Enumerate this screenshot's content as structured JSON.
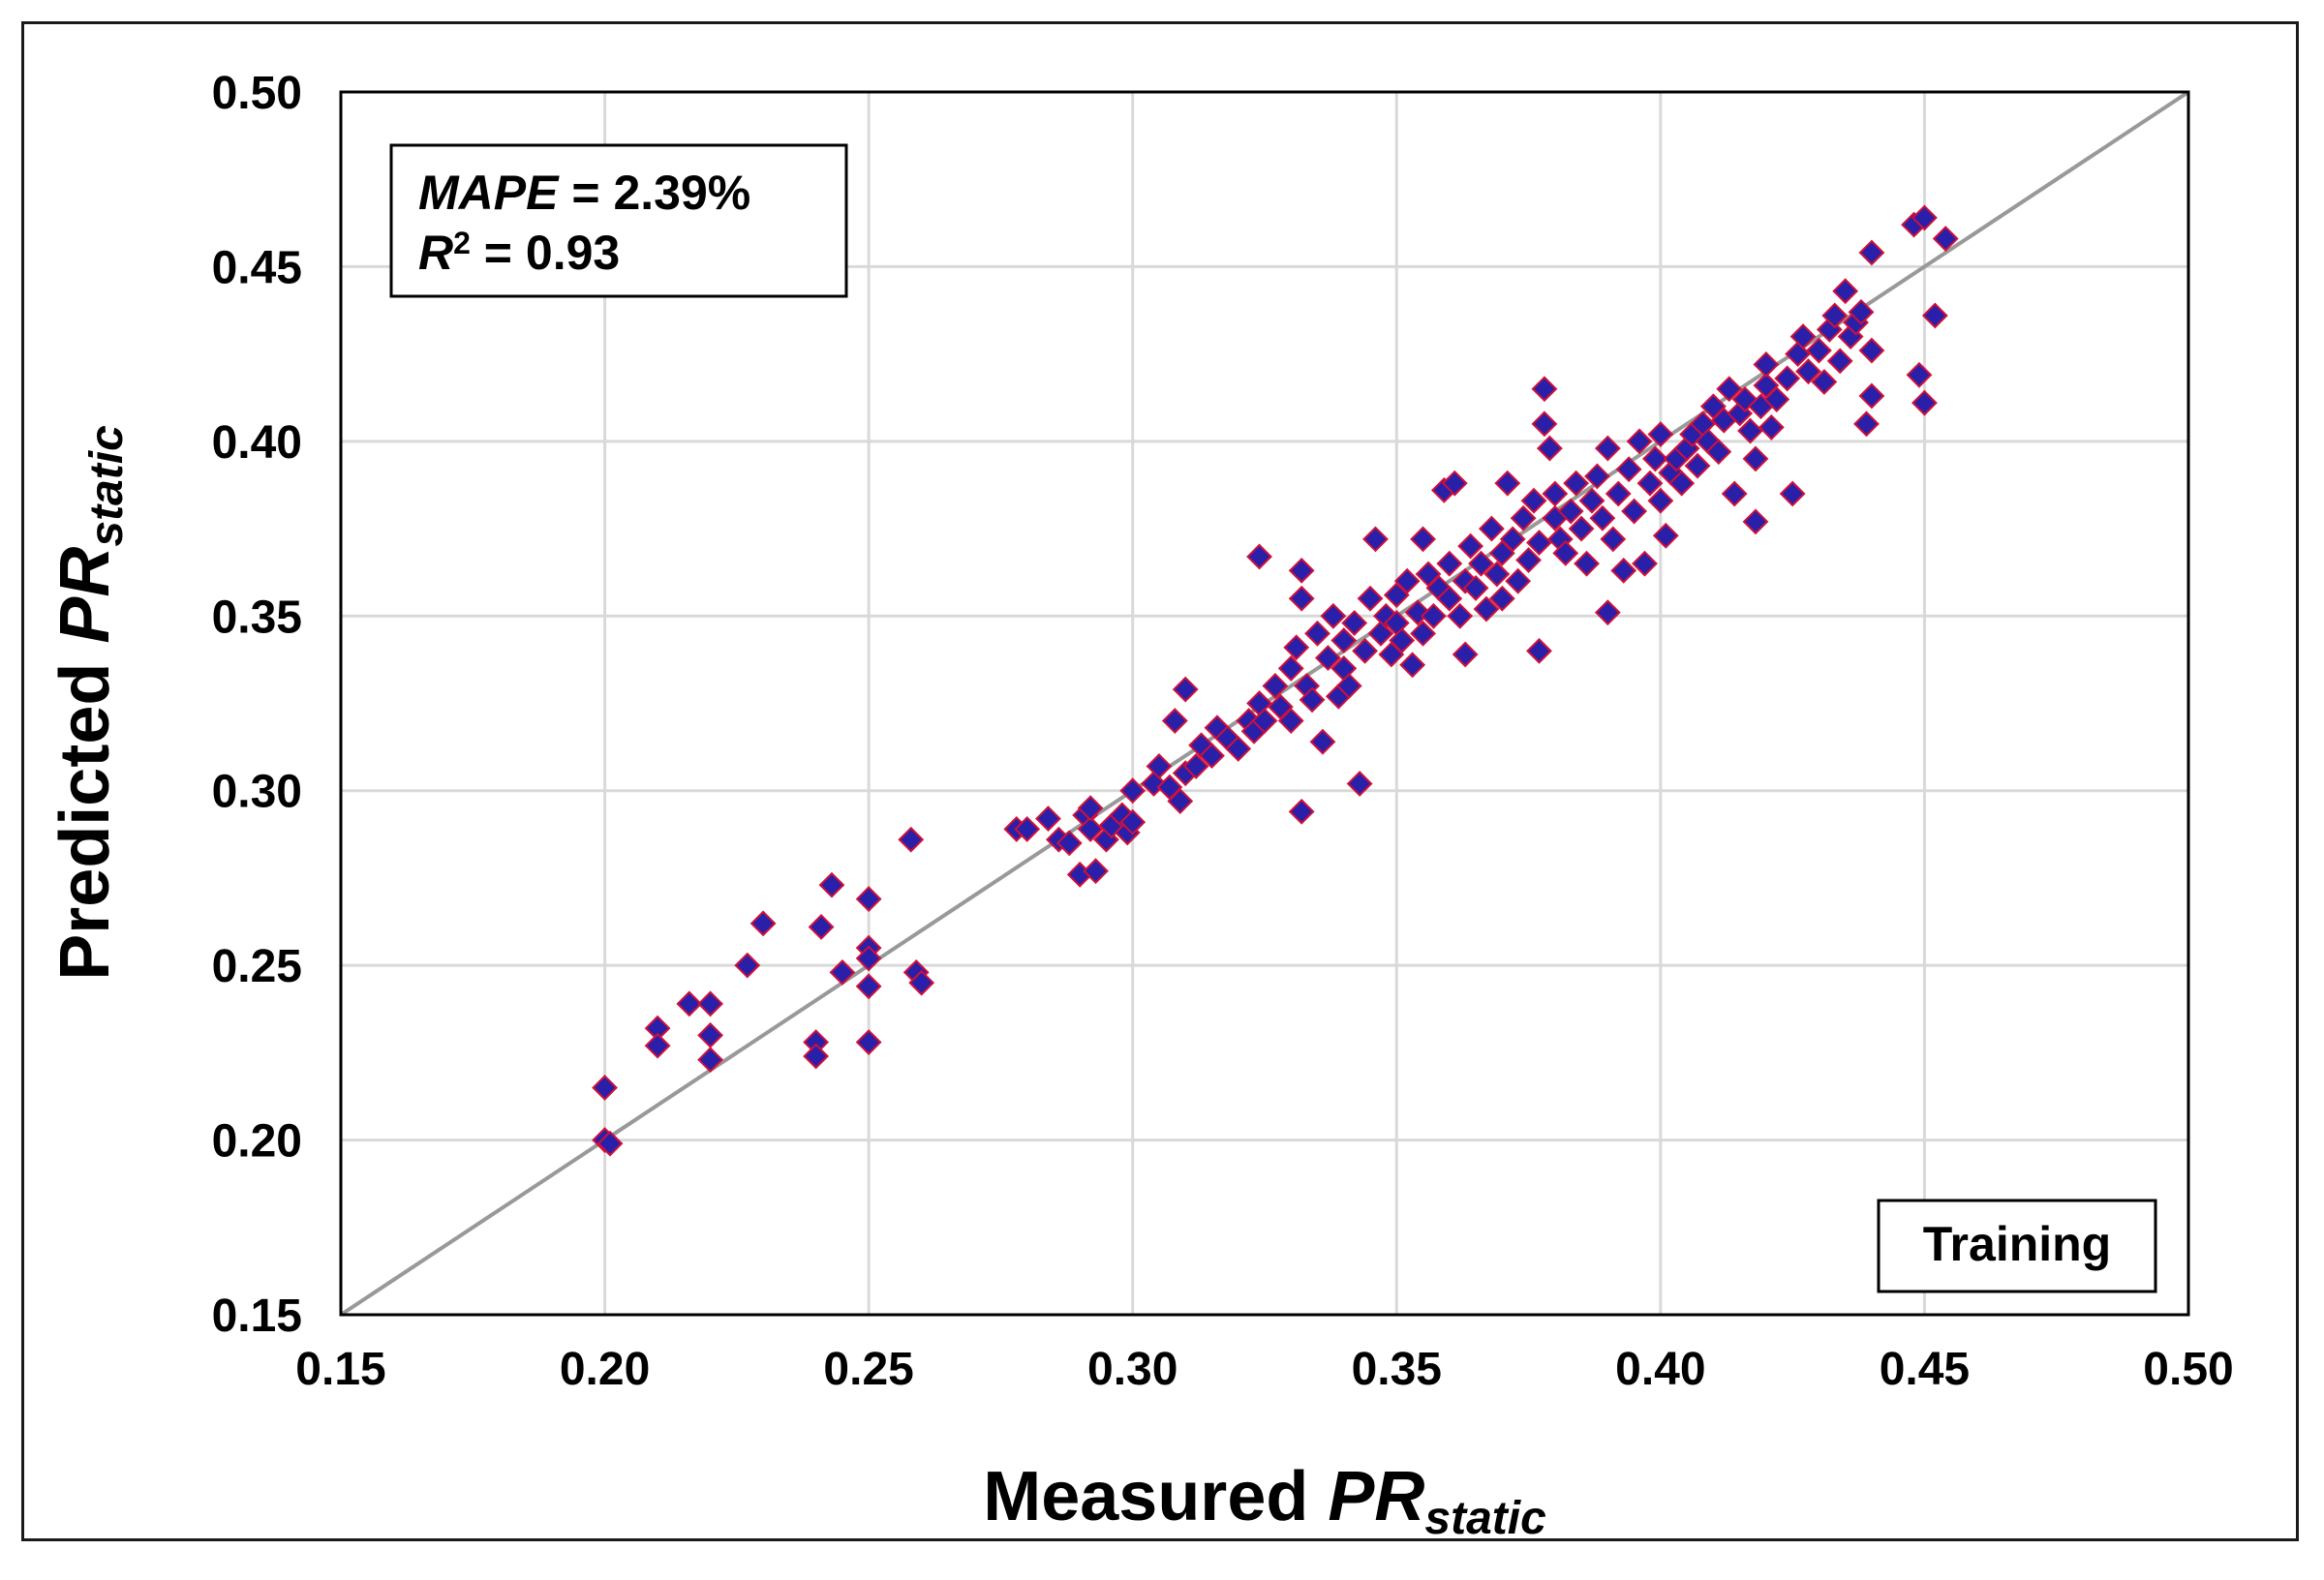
{
  "chart_data": {
    "type": "scatter",
    "title": "",
    "xlabel": {
      "text": "Measured ",
      "italic": "PR",
      "subscript": "static"
    },
    "ylabel": {
      "text": "Predicted ",
      "italic": "PR",
      "subscript": "static"
    },
    "xlim": [
      0.15,
      0.5
    ],
    "ylim": [
      0.15,
      0.5
    ],
    "xticks": [
      "0.15",
      "0.20",
      "0.25",
      "0.30",
      "0.35",
      "0.40",
      "0.45",
      "0.50"
    ],
    "yticks": [
      "0.15",
      "0.20",
      "0.25",
      "0.30",
      "0.35",
      "0.40",
      "0.45",
      "0.50"
    ],
    "grid": true,
    "reference_line": {
      "from": [
        0.15,
        0.15
      ],
      "to": [
        0.5,
        0.5
      ],
      "color": "#999999"
    },
    "stats": {
      "mape_label": "MAPE",
      "mape_value": " = 2.39%",
      "r2_label": "R",
      "r2_sup": "2",
      "r2_value": " = 0.93"
    },
    "legend_label": "Training",
    "marker": {
      "shape": "diamond",
      "fill": "#2a1fa8",
      "stroke": "#d0103a"
    },
    "series": [
      {
        "name": "Training",
        "points": [
          [
            0.2,
            0.215
          ],
          [
            0.2,
            0.2
          ],
          [
            0.201,
            0.199
          ],
          [
            0.21,
            0.232
          ],
          [
            0.21,
            0.227
          ],
          [
            0.216,
            0.239
          ],
          [
            0.22,
            0.239
          ],
          [
            0.22,
            0.23
          ],
          [
            0.22,
            0.223
          ],
          [
            0.227,
            0.25
          ],
          [
            0.23,
            0.262
          ],
          [
            0.24,
            0.228
          ],
          [
            0.24,
            0.224
          ],
          [
            0.241,
            0.261
          ],
          [
            0.243,
            0.273
          ],
          [
            0.245,
            0.248
          ],
          [
            0.25,
            0.269
          ],
          [
            0.25,
            0.255
          ],
          [
            0.25,
            0.252
          ],
          [
            0.25,
            0.244
          ],
          [
            0.25,
            0.228
          ],
          [
            0.258,
            0.286
          ],
          [
            0.259,
            0.248
          ],
          [
            0.26,
            0.245
          ],
          [
            0.278,
            0.289
          ],
          [
            0.28,
            0.289
          ],
          [
            0.284,
            0.292
          ],
          [
            0.286,
            0.286
          ],
          [
            0.288,
            0.285
          ],
          [
            0.29,
            0.276
          ],
          [
            0.291,
            0.293
          ],
          [
            0.292,
            0.289
          ],
          [
            0.292,
            0.295
          ],
          [
            0.293,
            0.277
          ],
          [
            0.295,
            0.286
          ],
          [
            0.296,
            0.29
          ],
          [
            0.298,
            0.293
          ],
          [
            0.299,
            0.288
          ],
          [
            0.3,
            0.291
          ],
          [
            0.3,
            0.3
          ],
          [
            0.304,
            0.302
          ],
          [
            0.305,
            0.307
          ],
          [
            0.307,
            0.301
          ],
          [
            0.308,
            0.32
          ],
          [
            0.309,
            0.297
          ],
          [
            0.31,
            0.329
          ],
          [
            0.31,
            0.305
          ],
          [
            0.312,
            0.307
          ],
          [
            0.313,
            0.313
          ],
          [
            0.315,
            0.31
          ],
          [
            0.316,
            0.318
          ],
          [
            0.318,
            0.315
          ],
          [
            0.32,
            0.312
          ],
          [
            0.322,
            0.32
          ],
          [
            0.323,
            0.317
          ],
          [
            0.324,
            0.325
          ],
          [
            0.324,
            0.367
          ],
          [
            0.325,
            0.32
          ],
          [
            0.327,
            0.33
          ],
          [
            0.328,
            0.324
          ],
          [
            0.33,
            0.32
          ],
          [
            0.33,
            0.335
          ],
          [
            0.331,
            0.341
          ],
          [
            0.332,
            0.363
          ],
          [
            0.332,
            0.355
          ],
          [
            0.332,
            0.294
          ],
          [
            0.333,
            0.33
          ],
          [
            0.334,
            0.326
          ],
          [
            0.335,
            0.345
          ],
          [
            0.336,
            0.314
          ],
          [
            0.337,
            0.338
          ],
          [
            0.338,
            0.35
          ],
          [
            0.339,
            0.327
          ],
          [
            0.34,
            0.335
          ],
          [
            0.34,
            0.343
          ],
          [
            0.341,
            0.33
          ],
          [
            0.342,
            0.348
          ],
          [
            0.343,
            0.302
          ],
          [
            0.344,
            0.34
          ],
          [
            0.345,
            0.355
          ],
          [
            0.346,
            0.372
          ],
          [
            0.347,
            0.345
          ],
          [
            0.348,
            0.35
          ],
          [
            0.349,
            0.339
          ],
          [
            0.35,
            0.348
          ],
          [
            0.35,
            0.356
          ],
          [
            0.351,
            0.343
          ],
          [
            0.352,
            0.36
          ],
          [
            0.353,
            0.336
          ],
          [
            0.354,
            0.351
          ],
          [
            0.355,
            0.372
          ],
          [
            0.355,
            0.345
          ],
          [
            0.356,
            0.362
          ],
          [
            0.357,
            0.35
          ],
          [
            0.358,
            0.358
          ],
          [
            0.359,
            0.386
          ],
          [
            0.36,
            0.355
          ],
          [
            0.36,
            0.365
          ],
          [
            0.361,
            0.388
          ],
          [
            0.362,
            0.35
          ],
          [
            0.363,
            0.36
          ],
          [
            0.363,
            0.339
          ],
          [
            0.364,
            0.37
          ],
          [
            0.365,
            0.358
          ],
          [
            0.366,
            0.365
          ],
          [
            0.367,
            0.352
          ],
          [
            0.368,
            0.375
          ],
          [
            0.369,
            0.362
          ],
          [
            0.37,
            0.368
          ],
          [
            0.37,
            0.355
          ],
          [
            0.371,
            0.388
          ],
          [
            0.372,
            0.372
          ],
          [
            0.373,
            0.36
          ],
          [
            0.374,
            0.378
          ],
          [
            0.375,
            0.366
          ],
          [
            0.376,
            0.383
          ],
          [
            0.377,
            0.371
          ],
          [
            0.377,
            0.34
          ],
          [
            0.378,
            0.415
          ],
          [
            0.378,
            0.405
          ],
          [
            0.379,
            0.398
          ],
          [
            0.38,
            0.378
          ],
          [
            0.38,
            0.385
          ],
          [
            0.381,
            0.372
          ],
          [
            0.382,
            0.368
          ],
          [
            0.383,
            0.38
          ],
          [
            0.384,
            0.388
          ],
          [
            0.385,
            0.375
          ],
          [
            0.386,
            0.365
          ],
          [
            0.387,
            0.383
          ],
          [
            0.388,
            0.39
          ],
          [
            0.389,
            0.378
          ],
          [
            0.39,
            0.398
          ],
          [
            0.39,
            0.351
          ],
          [
            0.391,
            0.372
          ],
          [
            0.392,
            0.385
          ],
          [
            0.393,
            0.363
          ],
          [
            0.394,
            0.392
          ],
          [
            0.395,
            0.38
          ],
          [
            0.396,
            0.4
          ],
          [
            0.397,
            0.365
          ],
          [
            0.398,
            0.388
          ],
          [
            0.399,
            0.395
          ],
          [
            0.4,
            0.383
          ],
          [
            0.4,
            0.402
          ],
          [
            0.401,
            0.373
          ],
          [
            0.402,
            0.391
          ],
          [
            0.403,
            0.395
          ],
          [
            0.404,
            0.388
          ],
          [
            0.405,
            0.398
          ],
          [
            0.406,
            0.402
          ],
          [
            0.407,
            0.393
          ],
          [
            0.408,
            0.405
          ],
          [
            0.409,
            0.4
          ],
          [
            0.41,
            0.41
          ],
          [
            0.411,
            0.397
          ],
          [
            0.412,
            0.406
          ],
          [
            0.413,
            0.415
          ],
          [
            0.414,
            0.385
          ],
          [
            0.415,
            0.408
          ],
          [
            0.416,
            0.412
          ],
          [
            0.417,
            0.403
          ],
          [
            0.418,
            0.395
          ],
          [
            0.418,
            0.377
          ],
          [
            0.419,
            0.41
          ],
          [
            0.42,
            0.416
          ],
          [
            0.42,
            0.422
          ],
          [
            0.421,
            0.404
          ],
          [
            0.422,
            0.412
          ],
          [
            0.424,
            0.418
          ],
          [
            0.425,
            0.385
          ],
          [
            0.426,
            0.425
          ],
          [
            0.427,
            0.43
          ],
          [
            0.428,
            0.42
          ],
          [
            0.43,
            0.426
          ],
          [
            0.431,
            0.417
          ],
          [
            0.432,
            0.432
          ],
          [
            0.433,
            0.436
          ],
          [
            0.434,
            0.423
          ],
          [
            0.435,
            0.443
          ],
          [
            0.436,
            0.43
          ],
          [
            0.437,
            0.434
          ],
          [
            0.438,
            0.437
          ],
          [
            0.439,
            0.405
          ],
          [
            0.44,
            0.454
          ],
          [
            0.44,
            0.426
          ],
          [
            0.44,
            0.413
          ],
          [
            0.448,
            0.462
          ],
          [
            0.449,
            0.419
          ],
          [
            0.45,
            0.464
          ],
          [
            0.45,
            0.411
          ],
          [
            0.452,
            0.436
          ],
          [
            0.454,
            0.458
          ]
        ]
      }
    ]
  }
}
